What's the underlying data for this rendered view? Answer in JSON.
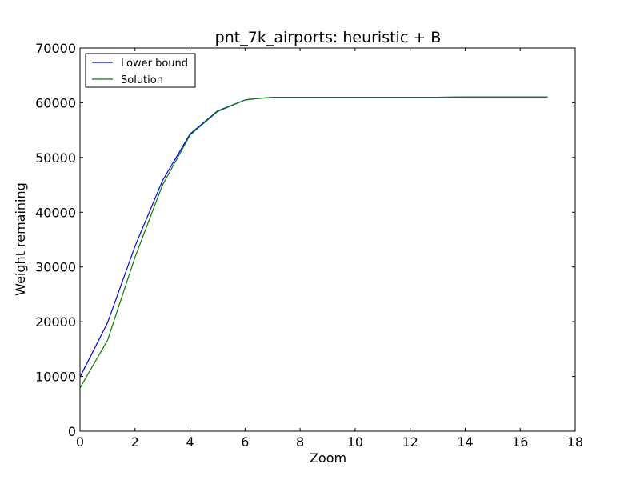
{
  "chart_data": {
    "type": "line",
    "title": "pnt_7k_airports: heuristic + B",
    "xlabel": "Zoom",
    "ylabel": "Weight remaining",
    "xlim": [
      0,
      18
    ],
    "ylim": [
      0,
      70000
    ],
    "xticks": [
      0,
      2,
      4,
      6,
      8,
      10,
      12,
      14,
      16,
      18
    ],
    "yticks": [
      0,
      10000,
      20000,
      30000,
      40000,
      50000,
      60000,
      70000
    ],
    "grid": false,
    "legend_position": "top-left",
    "series": [
      {
        "name": "Lower bound",
        "color": "#0000ff",
        "x": [
          0,
          1,
          2,
          3,
          4,
          5,
          6,
          6.3,
          7,
          8,
          9,
          10,
          11,
          12,
          13,
          14,
          15,
          16,
          17
        ],
        "y": [
          9900,
          19800,
          33800,
          45800,
          54300,
          58500,
          60500,
          60700,
          61000,
          61000,
          61000,
          61000,
          61000,
          61000,
          61000,
          61050,
          61050,
          61050,
          61050
        ]
      },
      {
        "name": "Solution",
        "color": "#008000",
        "x": [
          0,
          1,
          2,
          3,
          4,
          5,
          6,
          6.3,
          7,
          8,
          9,
          10,
          11,
          12,
          13,
          14,
          15,
          16,
          17
        ],
        "y": [
          7900,
          16600,
          31800,
          45000,
          54100,
          58400,
          60500,
          60700,
          61000,
          61000,
          61000,
          61000,
          61000,
          61000,
          61000,
          61050,
          61050,
          61050,
          61050
        ]
      }
    ]
  }
}
